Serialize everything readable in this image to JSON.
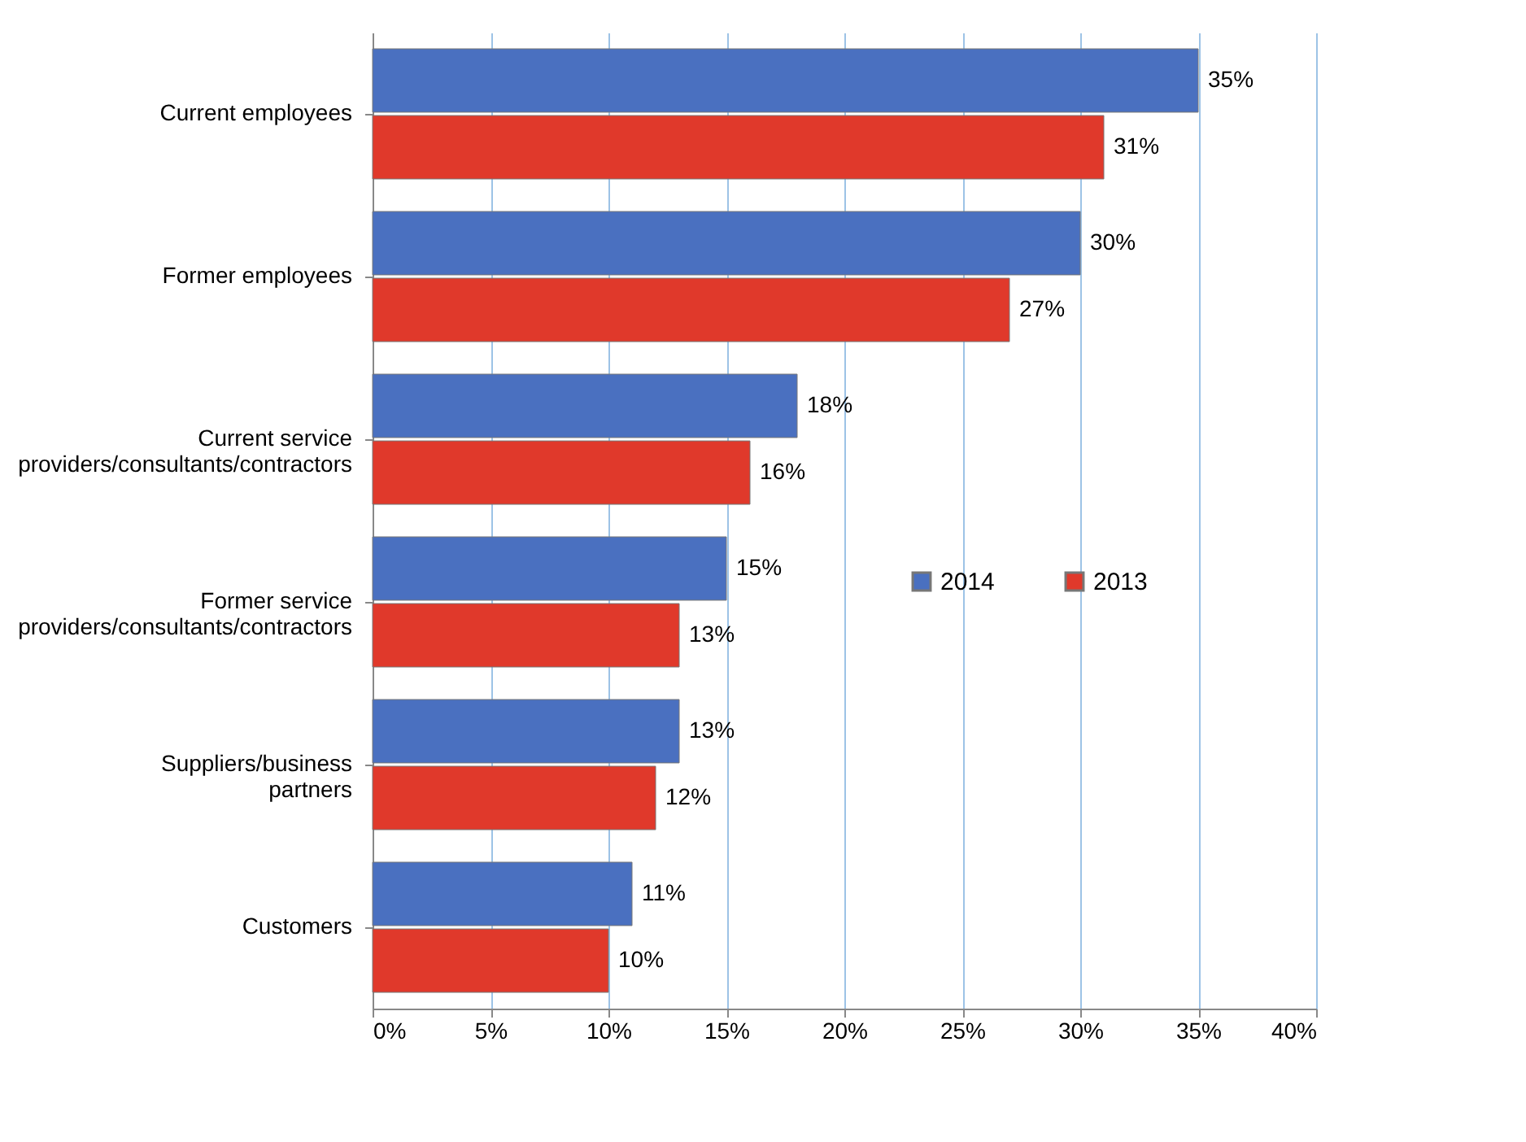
{
  "chart_data": {
    "type": "bar",
    "orientation": "horizontal",
    "categories": [
      "Current employees",
      "Former employees",
      "Current service providers/consultants/contractors",
      "Former service providers/consultants/contractors",
      "Suppliers/business partners",
      "Customers"
    ],
    "series": [
      {
        "name": "2014",
        "color": "#4a70c0",
        "values": [
          35,
          30,
          18,
          15,
          13,
          11
        ],
        "value_labels": [
          "35%",
          "30%",
          "18%",
          "15%",
          "13%",
          "11%"
        ]
      },
      {
        "name": "2013",
        "color": "#e0392b",
        "values": [
          31,
          27,
          16,
          13,
          12,
          10
        ],
        "value_labels": [
          "31%",
          "27%",
          "16%",
          "13%",
          "12%",
          "10%"
        ]
      }
    ],
    "xlim": [
      0,
      40
    ],
    "xticks": [
      {
        "value": 0,
        "label": "0%"
      },
      {
        "value": 5,
        "label": "5%"
      },
      {
        "value": 10,
        "label": "10%"
      },
      {
        "value": 15,
        "label": "15%"
      },
      {
        "value": 20,
        "label": "20%"
      },
      {
        "value": 25,
        "label": "25%"
      },
      {
        "value": 30,
        "label": "30%"
      },
      {
        "value": 35,
        "label": "35%"
      },
      {
        "value": 40,
        "label": "40%"
      }
    ],
    "grid": "x",
    "legend": "right"
  }
}
